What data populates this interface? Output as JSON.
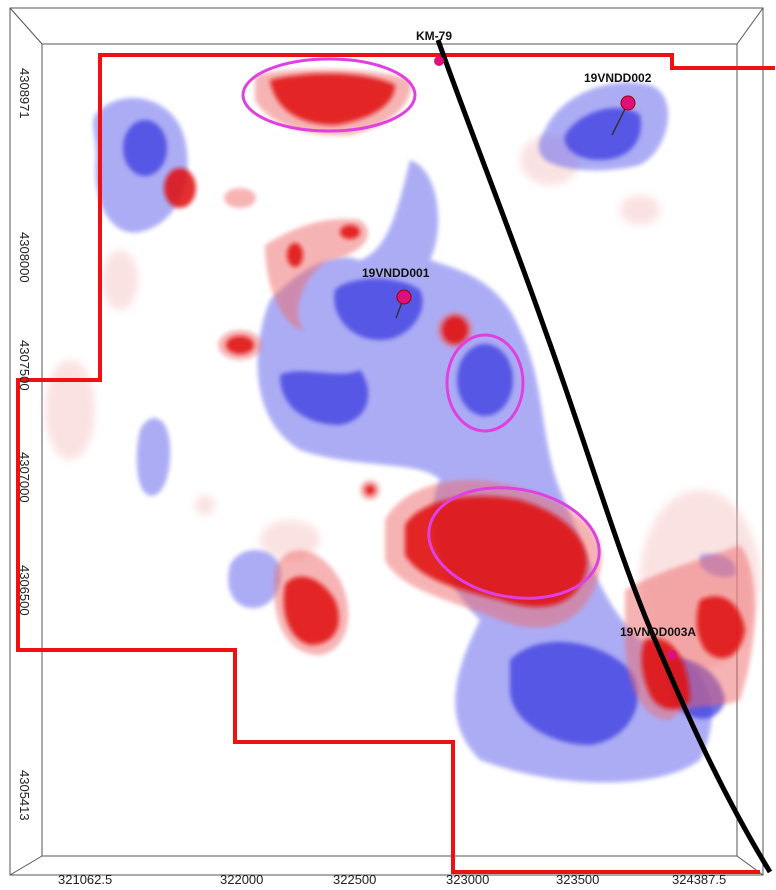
{
  "colors": {
    "background": "#ffffff",
    "claim_boundary": "#ee1111",
    "fault_line": "#000000",
    "positive_anomaly": "#e81c1c",
    "negative_anomaly": "#5a5ae6",
    "target_ellipse": "#e040e0",
    "drill_collar": "#e0107a",
    "frame": "#555555"
  },
  "labels": {
    "fault": "KM-79",
    "drill_ne": "19VNDD002",
    "drill_center": "19VNDD001",
    "drill_se": "19VNDD003A"
  },
  "axes": {
    "x_ticks": [
      "321062.5",
      "322000",
      "322500",
      "323000",
      "323500",
      "324387.5"
    ],
    "y_ticks": [
      "4308971",
      "4308000",
      "4307500",
      "4307000",
      "4306500",
      "4305413"
    ]
  }
}
